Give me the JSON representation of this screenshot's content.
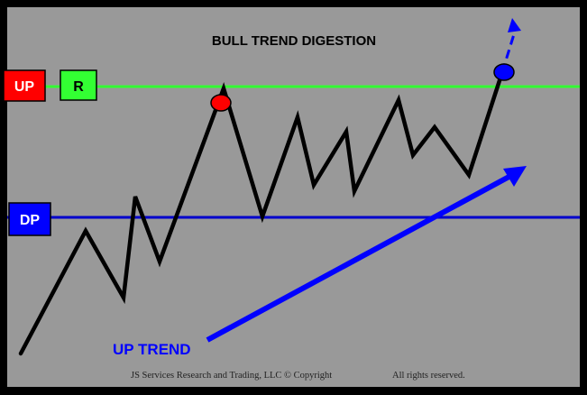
{
  "title": "BULL TREND DIGESTION",
  "labels": {
    "up": "UP",
    "r": "R",
    "dp": "DP",
    "up_trend": "UP TREND"
  },
  "footer": {
    "company": "JS Services Research  and Trading, LLC © Copyright",
    "rights": "All rights reserved."
  },
  "colors": {
    "background": "#999999",
    "border": "#000000",
    "up_box": "#ff0000",
    "r_box": "#33ff33",
    "resistance_line": "#33ff33",
    "dp_box": "#0000ff",
    "support_line": "#0000cc",
    "price_line": "#000000",
    "trend_arrow": "#0000ff",
    "red_dot": "#ff0000",
    "blue_dot": "#0000ff"
  }
}
